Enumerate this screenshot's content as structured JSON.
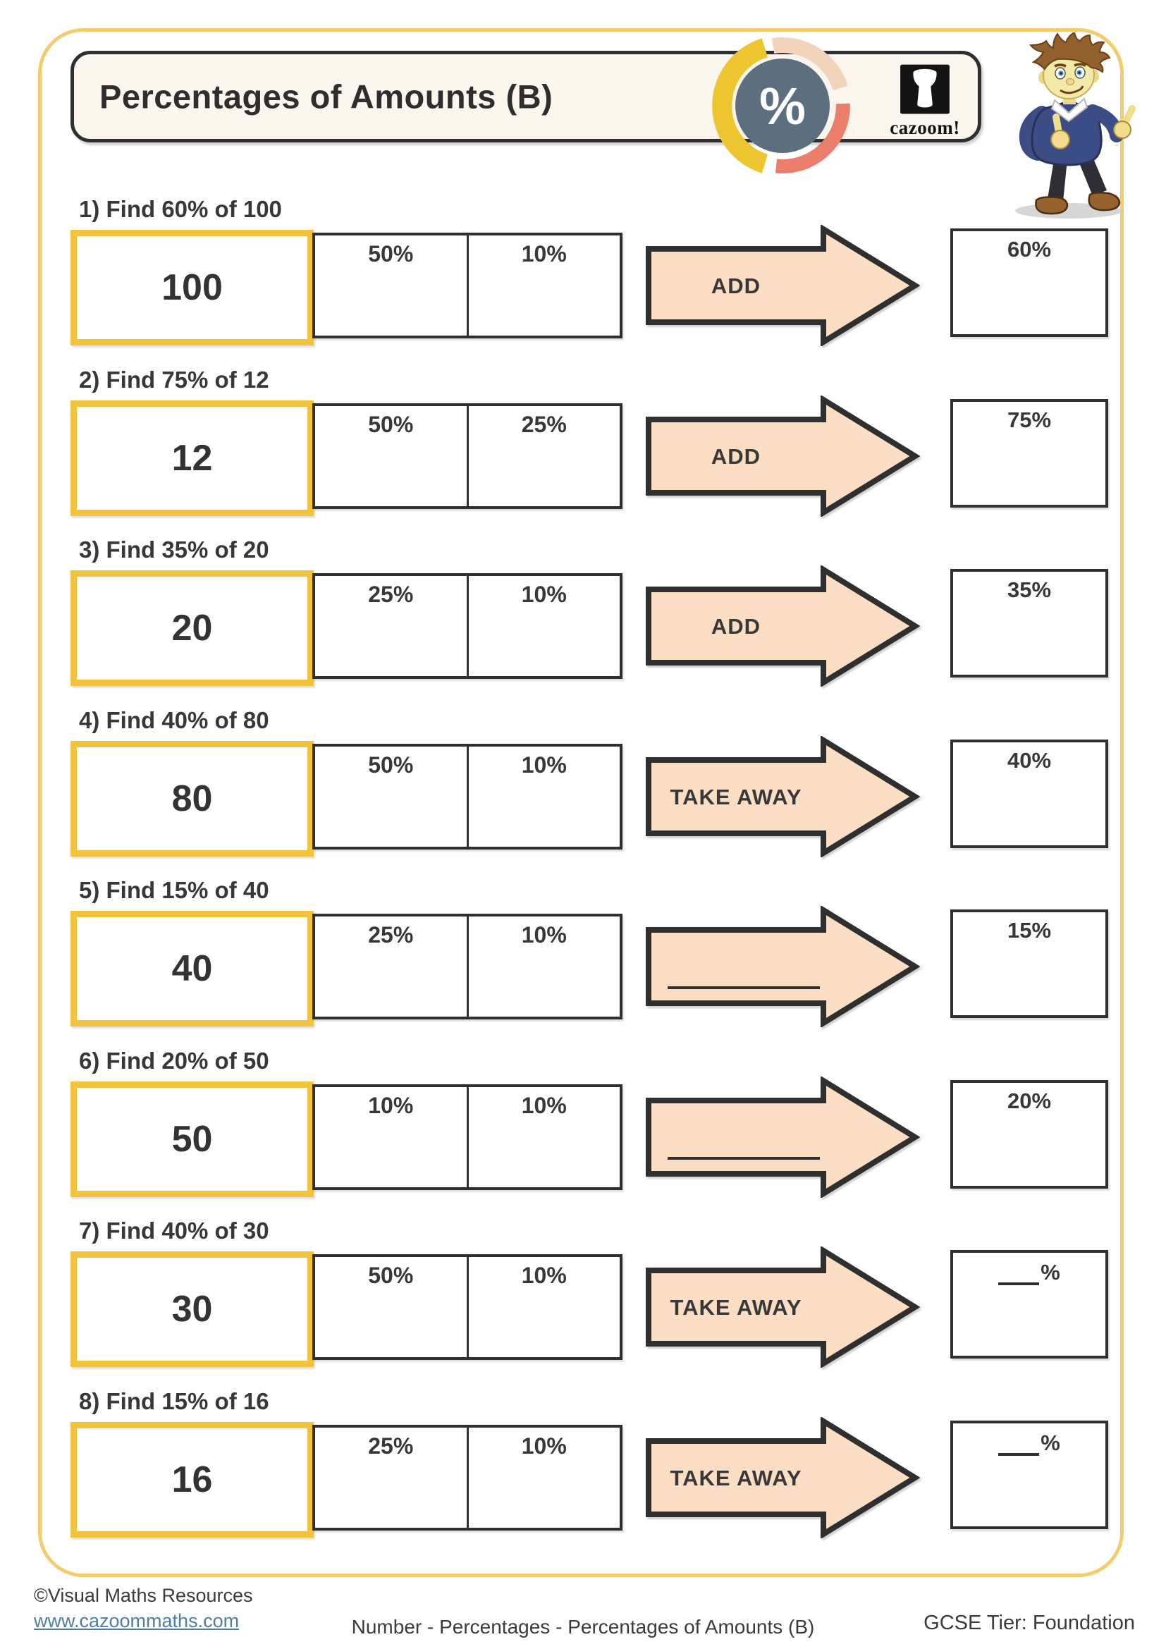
{
  "header": {
    "title": "Percentages of Amounts (B)",
    "percent_symbol": "%",
    "logo_text": "cazoom!",
    "icons": [
      "percent-ring-icon",
      "cazoom-drum-icon",
      "mascot-boy-thumbs-up"
    ]
  },
  "colors": {
    "accent_yellow": "#F2C43D",
    "page_border_yellow": "#F3CC6E",
    "border_dark": "#2F2F2F",
    "arrow_fill": "#FBDEC4",
    "header_cream": "#FAF6ED",
    "badge_slate": "#5D6F7E",
    "badge_yellow": "#ECC52F",
    "badge_peach": "#F2D3BC",
    "badge_coral": "#EA7E6B",
    "link_blue": "#4D7EA6"
  },
  "rows": [
    {
      "question": "1) Find 60% of 100",
      "amount": "100",
      "cell1": "50%",
      "cell2": "10%",
      "arrow_label": "ADD",
      "answer_label": "60%",
      "answer_blank": false,
      "answer_suffix": "%"
    },
    {
      "question": "2) Find 75% of 12",
      "amount": "12",
      "cell1": "50%",
      "cell2": "25%",
      "arrow_label": "ADD",
      "answer_label": "75%",
      "answer_blank": false,
      "answer_suffix": "%"
    },
    {
      "question": "3) Find 35% of 20",
      "amount": "20",
      "cell1": "25%",
      "cell2": "10%",
      "arrow_label": "ADD",
      "answer_label": "35%",
      "answer_blank": false,
      "answer_suffix": "%"
    },
    {
      "question": "4) Find 40% of 80",
      "amount": "80",
      "cell1": "50%",
      "cell2": "10%",
      "arrow_label": "TAKE AWAY",
      "answer_label": "40%",
      "answer_blank": false,
      "answer_suffix": "%"
    },
    {
      "question": "5) Find 15% of 40",
      "amount": "40",
      "cell1": "25%",
      "cell2": "10%",
      "arrow_label": "",
      "answer_label": "15%",
      "answer_blank": false,
      "answer_suffix": "%"
    },
    {
      "question": "6) Find 20% of 50",
      "amount": "50",
      "cell1": "10%",
      "cell2": "10%",
      "arrow_label": "",
      "answer_label": "20%",
      "answer_blank": false,
      "answer_suffix": "%"
    },
    {
      "question": "7) Find 40% of 30",
      "amount": "30",
      "cell1": "50%",
      "cell2": "10%",
      "arrow_label": "TAKE AWAY",
      "answer_label": "",
      "answer_blank": true,
      "answer_suffix": "%"
    },
    {
      "question": "8) Find 15% of 16",
      "amount": "16",
      "cell1": "25%",
      "cell2": "10%",
      "arrow_label": "TAKE AWAY",
      "answer_label": "",
      "answer_blank": true,
      "answer_suffix": "%"
    }
  ],
  "footer": {
    "copyright": "©Visual Maths Resources",
    "website": "www.cazoommaths.com",
    "center": "Number - Percentages - Percentages of Amounts (B)",
    "right": "GCSE Tier: Foundation"
  }
}
